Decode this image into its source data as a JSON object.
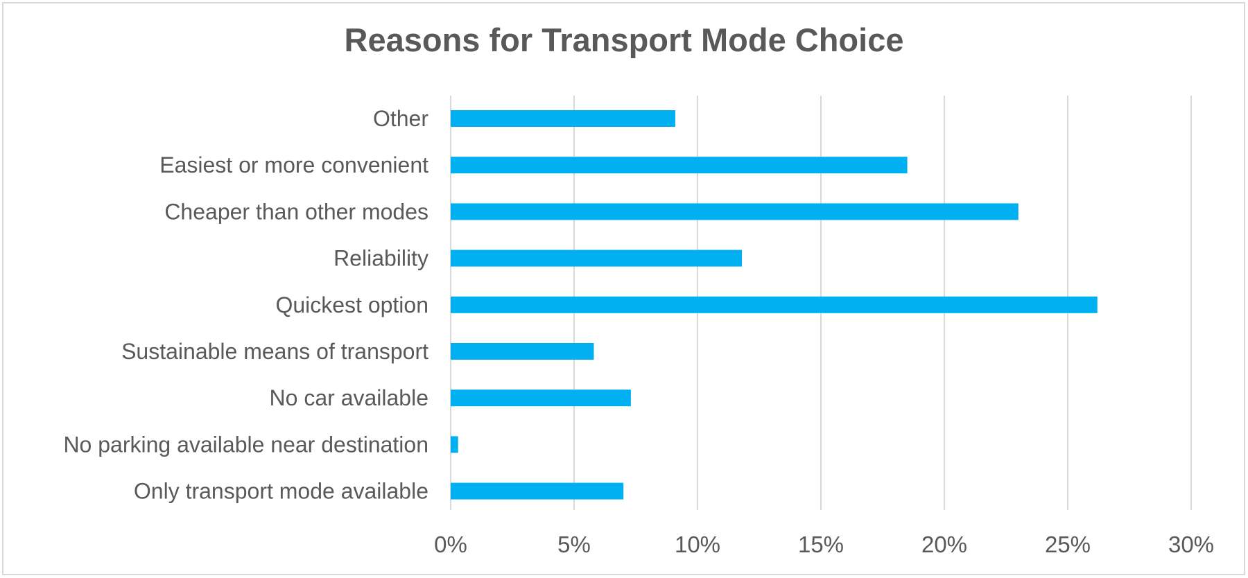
{
  "chart_data": {
    "type": "bar",
    "orientation": "horizontal",
    "title": "Reasons for Transport Mode Choice",
    "xlabel": "",
    "ylabel": "",
    "categories": [
      "Other",
      "Easiest or more convenient",
      "Cheaper than other modes",
      "Reliability",
      "Quickest option",
      "Sustainable means of transport",
      "No car available",
      "No parking available near destination",
      "Only transport mode available"
    ],
    "values": [
      9.1,
      18.5,
      23.0,
      11.8,
      26.2,
      5.8,
      7.3,
      0.3,
      7.0
    ],
    "xlim": [
      0,
      30
    ],
    "x_ticks": [
      0,
      5,
      10,
      15,
      20,
      25,
      30
    ],
    "x_tick_labels": [
      "0%",
      "5%",
      "10%",
      "15%",
      "20%",
      "25%",
      "30%"
    ],
    "grid": true,
    "legend": "none",
    "colors": {
      "bar": "#00b0f0",
      "grid": "#d9d9d9",
      "text": "#595959",
      "border": "#d9d9d9"
    }
  }
}
